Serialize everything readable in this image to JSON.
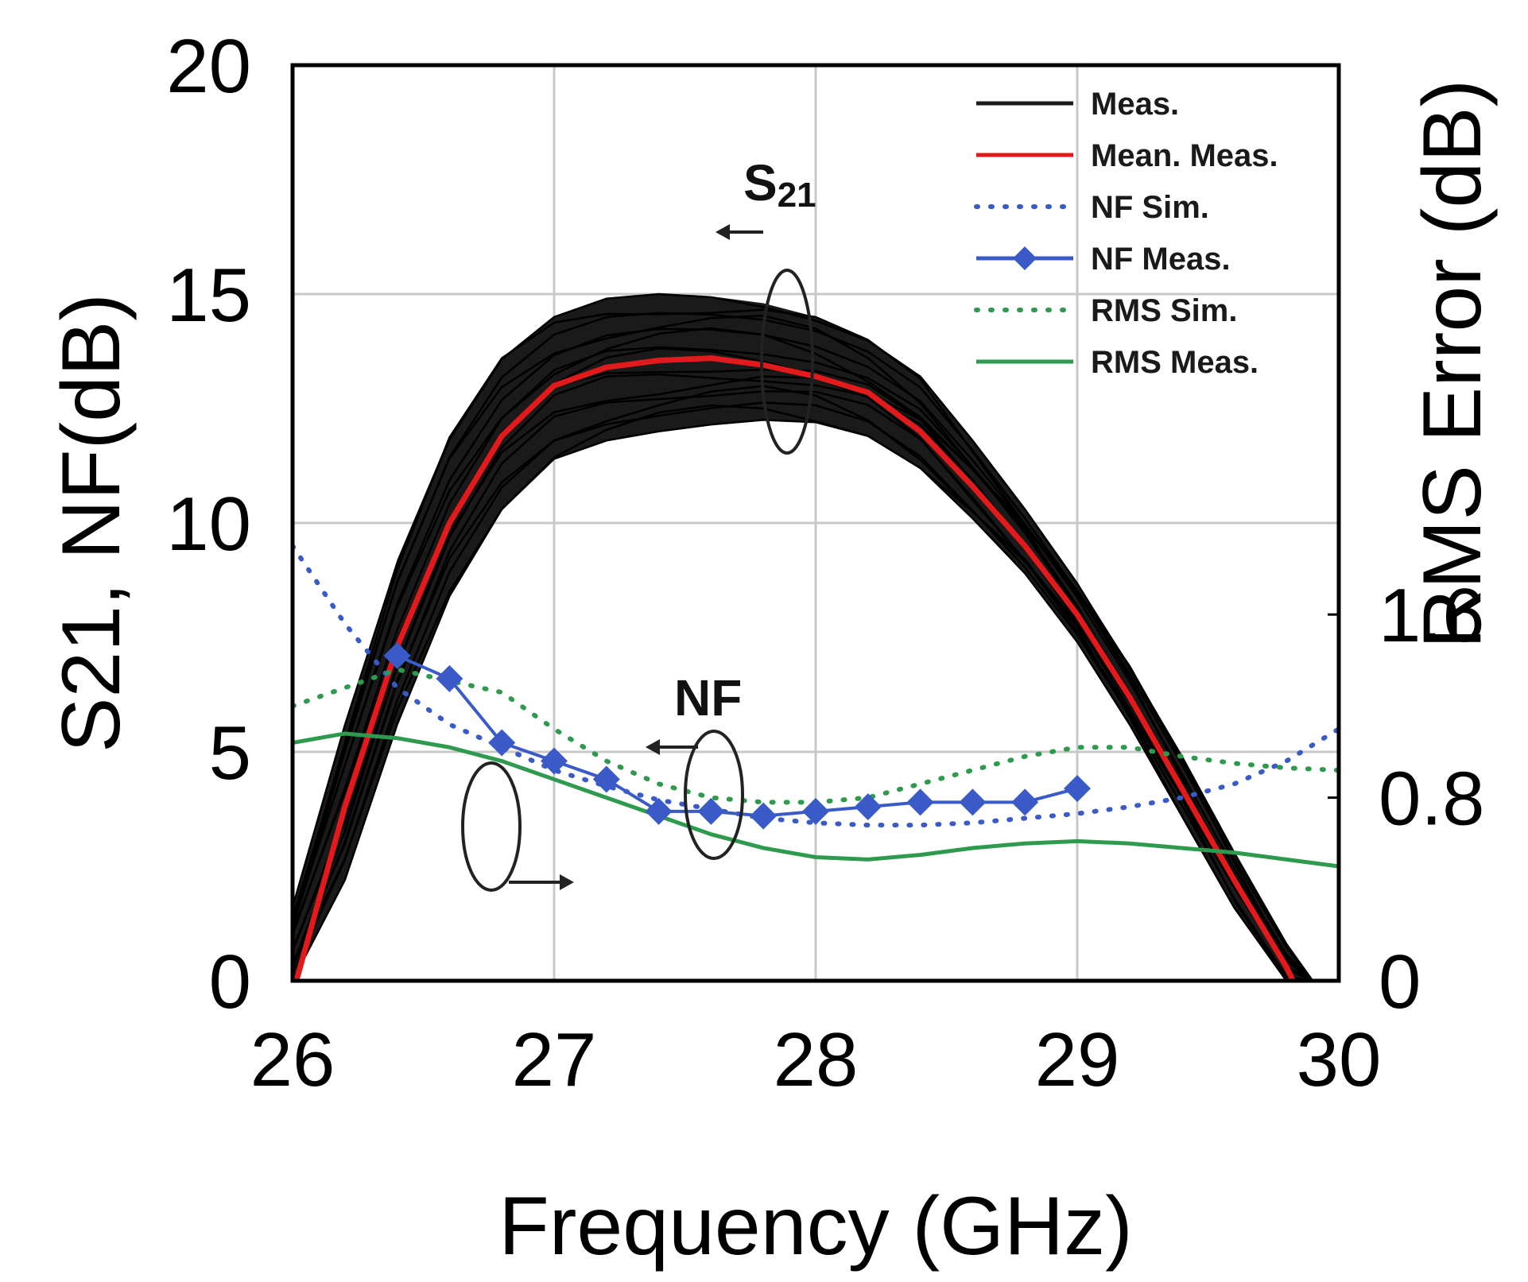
{
  "chart_data": {
    "type": "line",
    "xlabel": "Frequency (GHz)",
    "ylabel_left": "S21, NF(dB)",
    "ylabel_right": "RMS Error (dB)",
    "xlim": [
      26,
      30
    ],
    "ylim_left": [
      0,
      20
    ],
    "ylim_right": [
      0,
      4
    ],
    "x_ticks": [
      "26",
      "27",
      "28",
      "29",
      "30"
    ],
    "y_ticks_left": [
      "0",
      "5",
      "10",
      "15",
      "20"
    ],
    "y_ticks_right": [
      "0",
      "0.8",
      "1.6"
    ],
    "grid": true,
    "legend_position": "top-right",
    "colors": {
      "meas": "#1a1a1a",
      "mean_meas": "#e31a1c",
      "nf": "#3a5bc7",
      "rms": "#2e9a4e"
    },
    "legend": [
      {
        "label": "Meas.",
        "style": "solid",
        "color": "#1a1a1a"
      },
      {
        "label": "Mean. Meas.",
        "style": "solid",
        "color": "#e31a1c"
      },
      {
        "label": "NF Sim.",
        "style": "dotted",
        "color": "#3a5bc7"
      },
      {
        "label": "NF Meas.",
        "style": "solid-diamond",
        "color": "#3a5bc7"
      },
      {
        "label": "RMS Sim.",
        "style": "dotted",
        "color": "#2e9a4e"
      },
      {
        "label": "RMS Meas.",
        "style": "solid",
        "color": "#2e9a4e"
      }
    ],
    "annotations": {
      "s21_label": "S",
      "s21_sub": "21",
      "nf_label": "NF"
    },
    "series": [
      {
        "name": "Mean. Meas.",
        "axis": "left",
        "x": [
          26.0,
          26.2,
          26.4,
          26.6,
          26.8,
          27.0,
          27.2,
          27.4,
          27.6,
          27.8,
          28.0,
          28.2,
          28.4,
          28.6,
          28.8,
          29.0,
          29.2,
          29.4,
          29.6,
          29.8,
          29.85
        ],
        "y": [
          -0.3,
          3.8,
          7.3,
          10.0,
          11.9,
          13.0,
          13.4,
          13.55,
          13.6,
          13.45,
          13.2,
          12.85,
          12.0,
          10.8,
          9.5,
          8.0,
          6.2,
          4.2,
          2.2,
          0.3,
          -0.3
        ]
      },
      {
        "name": "NF Sim.",
        "axis": "left",
        "x": [
          26.0,
          26.2,
          26.4,
          26.6,
          26.8,
          27.0,
          27.2,
          27.4,
          27.6,
          27.8,
          28.0,
          28.2,
          28.4,
          28.6,
          28.8,
          29.0,
          29.2,
          29.4,
          29.6,
          29.8,
          30.0
        ],
        "y": [
          9.5,
          7.8,
          6.4,
          5.6,
          5.1,
          4.6,
          4.25,
          3.95,
          3.75,
          3.55,
          3.45,
          3.4,
          3.4,
          3.45,
          3.55,
          3.65,
          3.8,
          4.0,
          4.3,
          4.8,
          5.5
        ]
      },
      {
        "name": "NF Meas.",
        "axis": "left",
        "x": [
          26.4,
          26.6,
          26.8,
          27.0,
          27.2,
          27.4,
          27.6,
          27.8,
          28.0,
          28.2,
          28.4,
          28.6,
          28.8,
          29.0
        ],
        "y": [
          7.1,
          6.6,
          5.2,
          4.8,
          4.4,
          3.7,
          3.7,
          3.6,
          3.7,
          3.8,
          3.9,
          3.9,
          3.9,
          4.2
        ]
      },
      {
        "name": "RMS Sim.",
        "axis": "right",
        "x": [
          26.0,
          26.4,
          26.8,
          27.0,
          27.2,
          27.4,
          27.6,
          27.8,
          28.0,
          28.2,
          28.4,
          28.6,
          28.8,
          29.0,
          29.2,
          29.4,
          29.6,
          29.8,
          30.0
        ],
        "y": [
          1.2,
          1.36,
          1.26,
          1.1,
          0.96,
          0.86,
          0.8,
          0.78,
          0.78,
          0.8,
          0.86,
          0.92,
          0.98,
          1.02,
          1.02,
          0.98,
          0.95,
          0.93,
          0.92
        ]
      },
      {
        "name": "RMS Meas.",
        "axis": "right",
        "x": [
          26.0,
          26.2,
          26.4,
          26.6,
          26.8,
          27.0,
          27.2,
          27.4,
          27.6,
          27.8,
          28.0,
          28.2,
          28.4,
          28.6,
          28.8,
          29.0,
          29.2,
          29.4,
          29.6,
          29.8,
          30.0
        ],
        "y": [
          1.04,
          1.08,
          1.06,
          1.02,
          0.96,
          0.88,
          0.8,
          0.72,
          0.64,
          0.58,
          0.54,
          0.53,
          0.55,
          0.58,
          0.6,
          0.61,
          0.6,
          0.58,
          0.56,
          0.53,
          0.5
        ]
      }
    ],
    "meas_envelope": {
      "name": "Meas.",
      "axis": "left",
      "x": [
        26.0,
        26.2,
        26.4,
        26.6,
        26.8,
        27.0,
        27.2,
        27.4,
        27.6,
        27.8,
        28.0,
        28.2,
        28.4,
        28.6,
        28.8,
        29.0,
        29.2,
        29.4,
        29.6,
        29.8,
        29.9
      ],
      "upper": [
        1.6,
        5.6,
        9.2,
        11.9,
        13.6,
        14.5,
        14.9,
        15.0,
        14.95,
        14.8,
        14.5,
        14.0,
        13.2,
        11.8,
        10.3,
        8.7,
        6.9,
        4.9,
        2.8,
        0.8,
        0.0
      ],
      "lower": [
        0.0,
        2.2,
        5.6,
        8.4,
        10.3,
        11.4,
        11.8,
        12.0,
        12.15,
        12.25,
        12.2,
        11.9,
        11.2,
        10.1,
        8.9,
        7.4,
        5.6,
        3.6,
        1.6,
        0.0,
        0.0
      ]
    }
  }
}
